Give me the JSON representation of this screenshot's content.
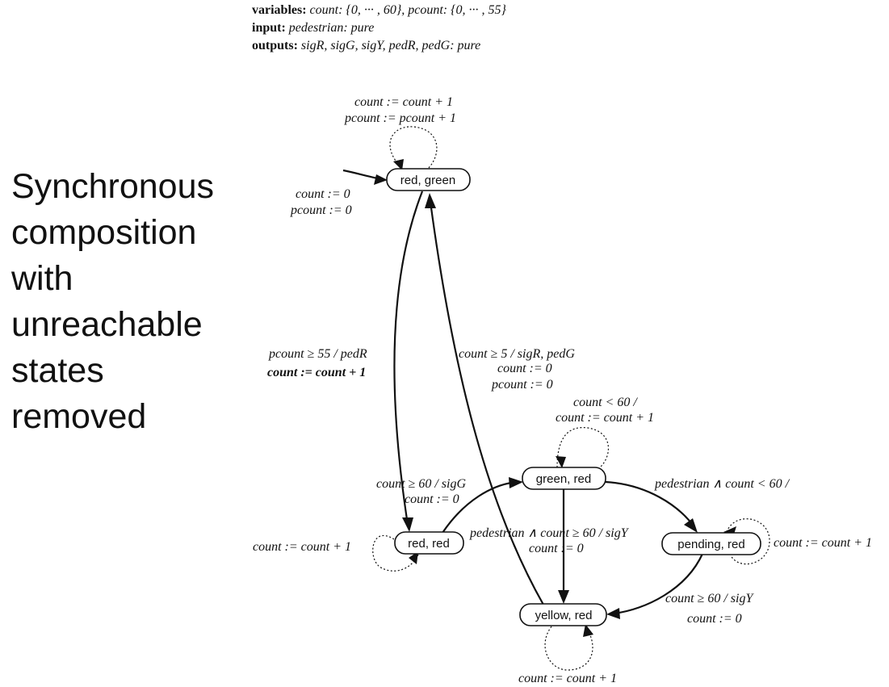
{
  "side_title": "Synchronous\ncomposition\nwith\nunreachable\nstates\nremoved",
  "declarations": {
    "variables_label": "variables:",
    "variables_value": "count: {0, ··· , 60}, pcount: {0, ··· , 55}",
    "input_label": "input:",
    "input_value": "pedestrian: pure",
    "outputs_label": "outputs:",
    "outputs_value": "sigR, sigG, sigY, pedR, pedG: pure"
  },
  "states": {
    "red_green": "red, green",
    "green_red": "green, red",
    "red_red": "red, red",
    "pending_red": "pending, red",
    "yellow_red": "yellow, red"
  },
  "labels": {
    "initial_1": "count := 0",
    "initial_2": "pcount := 0",
    "self_rg_1": "count := count + 1",
    "self_rg_2": "pcount := pcount + 1",
    "rg_to_rr_1": "pcount ≥ 55 / pedR",
    "rg_to_rr_2": "count := count + 1",
    "yr_to_rg_1": "count ≥ 5 / sigR, pedG",
    "yr_to_rg_2": "count := 0",
    "yr_to_rg_3": "pcount := 0",
    "self_gr_1": "count < 60 /",
    "self_gr_2": "count := count + 1",
    "rr_to_gr_1": "count ≥ 60 / sigG",
    "rr_to_gr_2": "count := 0",
    "self_rr": "count := count + 1",
    "gr_to_pr": "pedestrian ∧ count < 60 /",
    "gr_to_yr_1": "pedestrian ∧ count ≥ 60 / sigY",
    "gr_to_yr_2": "count := 0",
    "self_pr": "count := count + 1",
    "pr_to_yr_1": "count ≥ 60 / sigY",
    "pr_to_yr_2": "count := 0",
    "self_yr": "count := count + 1"
  }
}
